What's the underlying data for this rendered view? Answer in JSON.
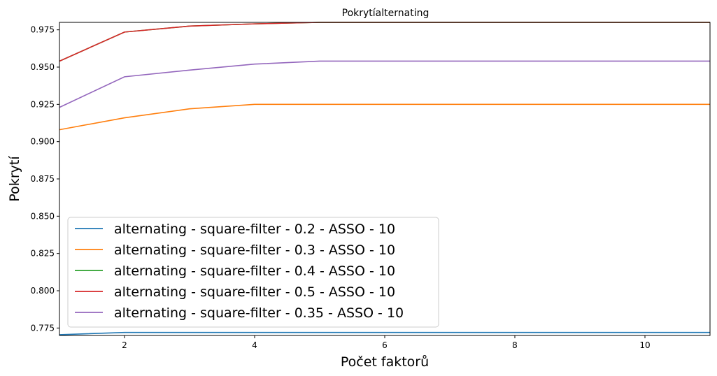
{
  "chart_data": {
    "type": "line",
    "title": "Pokrytíalternating",
    "xlabel": "Počet faktorů",
    "ylabel": "Pokrytí",
    "xlim": [
      1,
      11
    ],
    "ylim": [
      0.77,
      0.98
    ],
    "x_ticks": [
      2,
      4,
      6,
      8,
      10
    ],
    "y_ticks": [
      0.775,
      0.8,
      0.825,
      0.85,
      0.875,
      0.9,
      0.925,
      0.95,
      0.975
    ],
    "y_tick_labels": [
      "0.775",
      "0.800",
      "0.825",
      "0.850",
      "0.875",
      "0.900",
      "0.925",
      "0.950",
      "0.975"
    ],
    "grid": false,
    "legend_position": "lower-left",
    "x": [
      1,
      2,
      3,
      4,
      5,
      6,
      7,
      8,
      9,
      10,
      11
    ],
    "series": [
      {
        "name": "alternating - square-filter - 0.2 - ASSO - 10",
        "color": "#1f77b4",
        "values": [
          0.7705,
          0.772,
          0.772,
          0.772,
          0.772,
          0.772,
          0.772,
          0.772,
          0.772,
          0.772,
          0.772
        ]
      },
      {
        "name": "alternating - square-filter - 0.3 - ASSO - 10",
        "color": "#ff7f0e",
        "values": [
          0.908,
          0.916,
          0.922,
          0.925,
          0.925,
          0.925,
          0.925,
          0.925,
          0.925,
          0.925,
          0.925
        ]
      },
      {
        "name": "alternating - square-filter - 0.4 - ASSO - 10",
        "color": "#2ca02c",
        "values": [
          0.954,
          0.9735,
          0.9775,
          0.979,
          0.98,
          0.98,
          0.98,
          0.98,
          0.98,
          0.98,
          0.98
        ]
      },
      {
        "name": "alternating - square-filter - 0.5 - ASSO - 10",
        "color": "#d62728",
        "values": [
          0.954,
          0.9735,
          0.9775,
          0.979,
          0.98,
          0.98,
          0.98,
          0.98,
          0.98,
          0.98,
          0.98
        ]
      },
      {
        "name": "alternating - square-filter - 0.35 - ASSO - 10",
        "color": "#9467bd",
        "values": [
          0.923,
          0.9435,
          0.948,
          0.952,
          0.954,
          0.954,
          0.954,
          0.954,
          0.954,
          0.954,
          0.954
        ]
      }
    ]
  }
}
